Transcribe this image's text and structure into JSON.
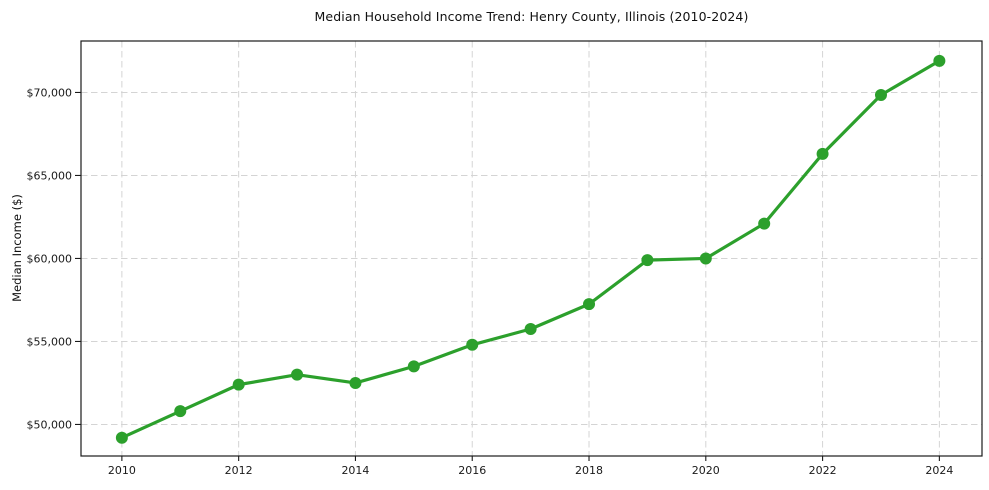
{
  "title": "Median Household Income Trend: Henry County, Illinois (2010-2024)",
  "chart_data": {
    "type": "line",
    "title": "Median Household Income Trend: Henry County, Illinois (2010-2024)",
    "xlabel": "",
    "ylabel": "Median Income ($)",
    "x": [
      2010,
      2011,
      2012,
      2013,
      2014,
      2015,
      2016,
      2017,
      2018,
      2019,
      2020,
      2021,
      2022,
      2023,
      2024
    ],
    "series": [
      {
        "name": "Median Household Income",
        "values": [
          49200,
          50800,
          52400,
          53000,
          52500,
          53500,
          54800,
          55750,
          57250,
          59900,
          60000,
          62100,
          66300,
          69850,
          71900
        ]
      }
    ],
    "xlim": [
      2009.3,
      2024.73
    ],
    "ylim": [
      48100,
      73100
    ],
    "xticks": [
      2010,
      2012,
      2014,
      2016,
      2018,
      2020,
      2022,
      2024
    ],
    "xtick_labels": [
      "2010",
      "2012",
      "2014",
      "2016",
      "2018",
      "2020",
      "2022",
      "2024"
    ],
    "yticks": [
      50000,
      55000,
      60000,
      65000,
      70000
    ],
    "ytick_labels": [
      "$50,000",
      "$55,000",
      "$60,000",
      "$65,000",
      "$70,000"
    ],
    "grid": true,
    "legend": false,
    "line_color": "#2ca02c",
    "marker": "circle",
    "grid_color": "#d4d4d4",
    "axis_color": "#1a1a1a",
    "background": "#ffffff"
  }
}
